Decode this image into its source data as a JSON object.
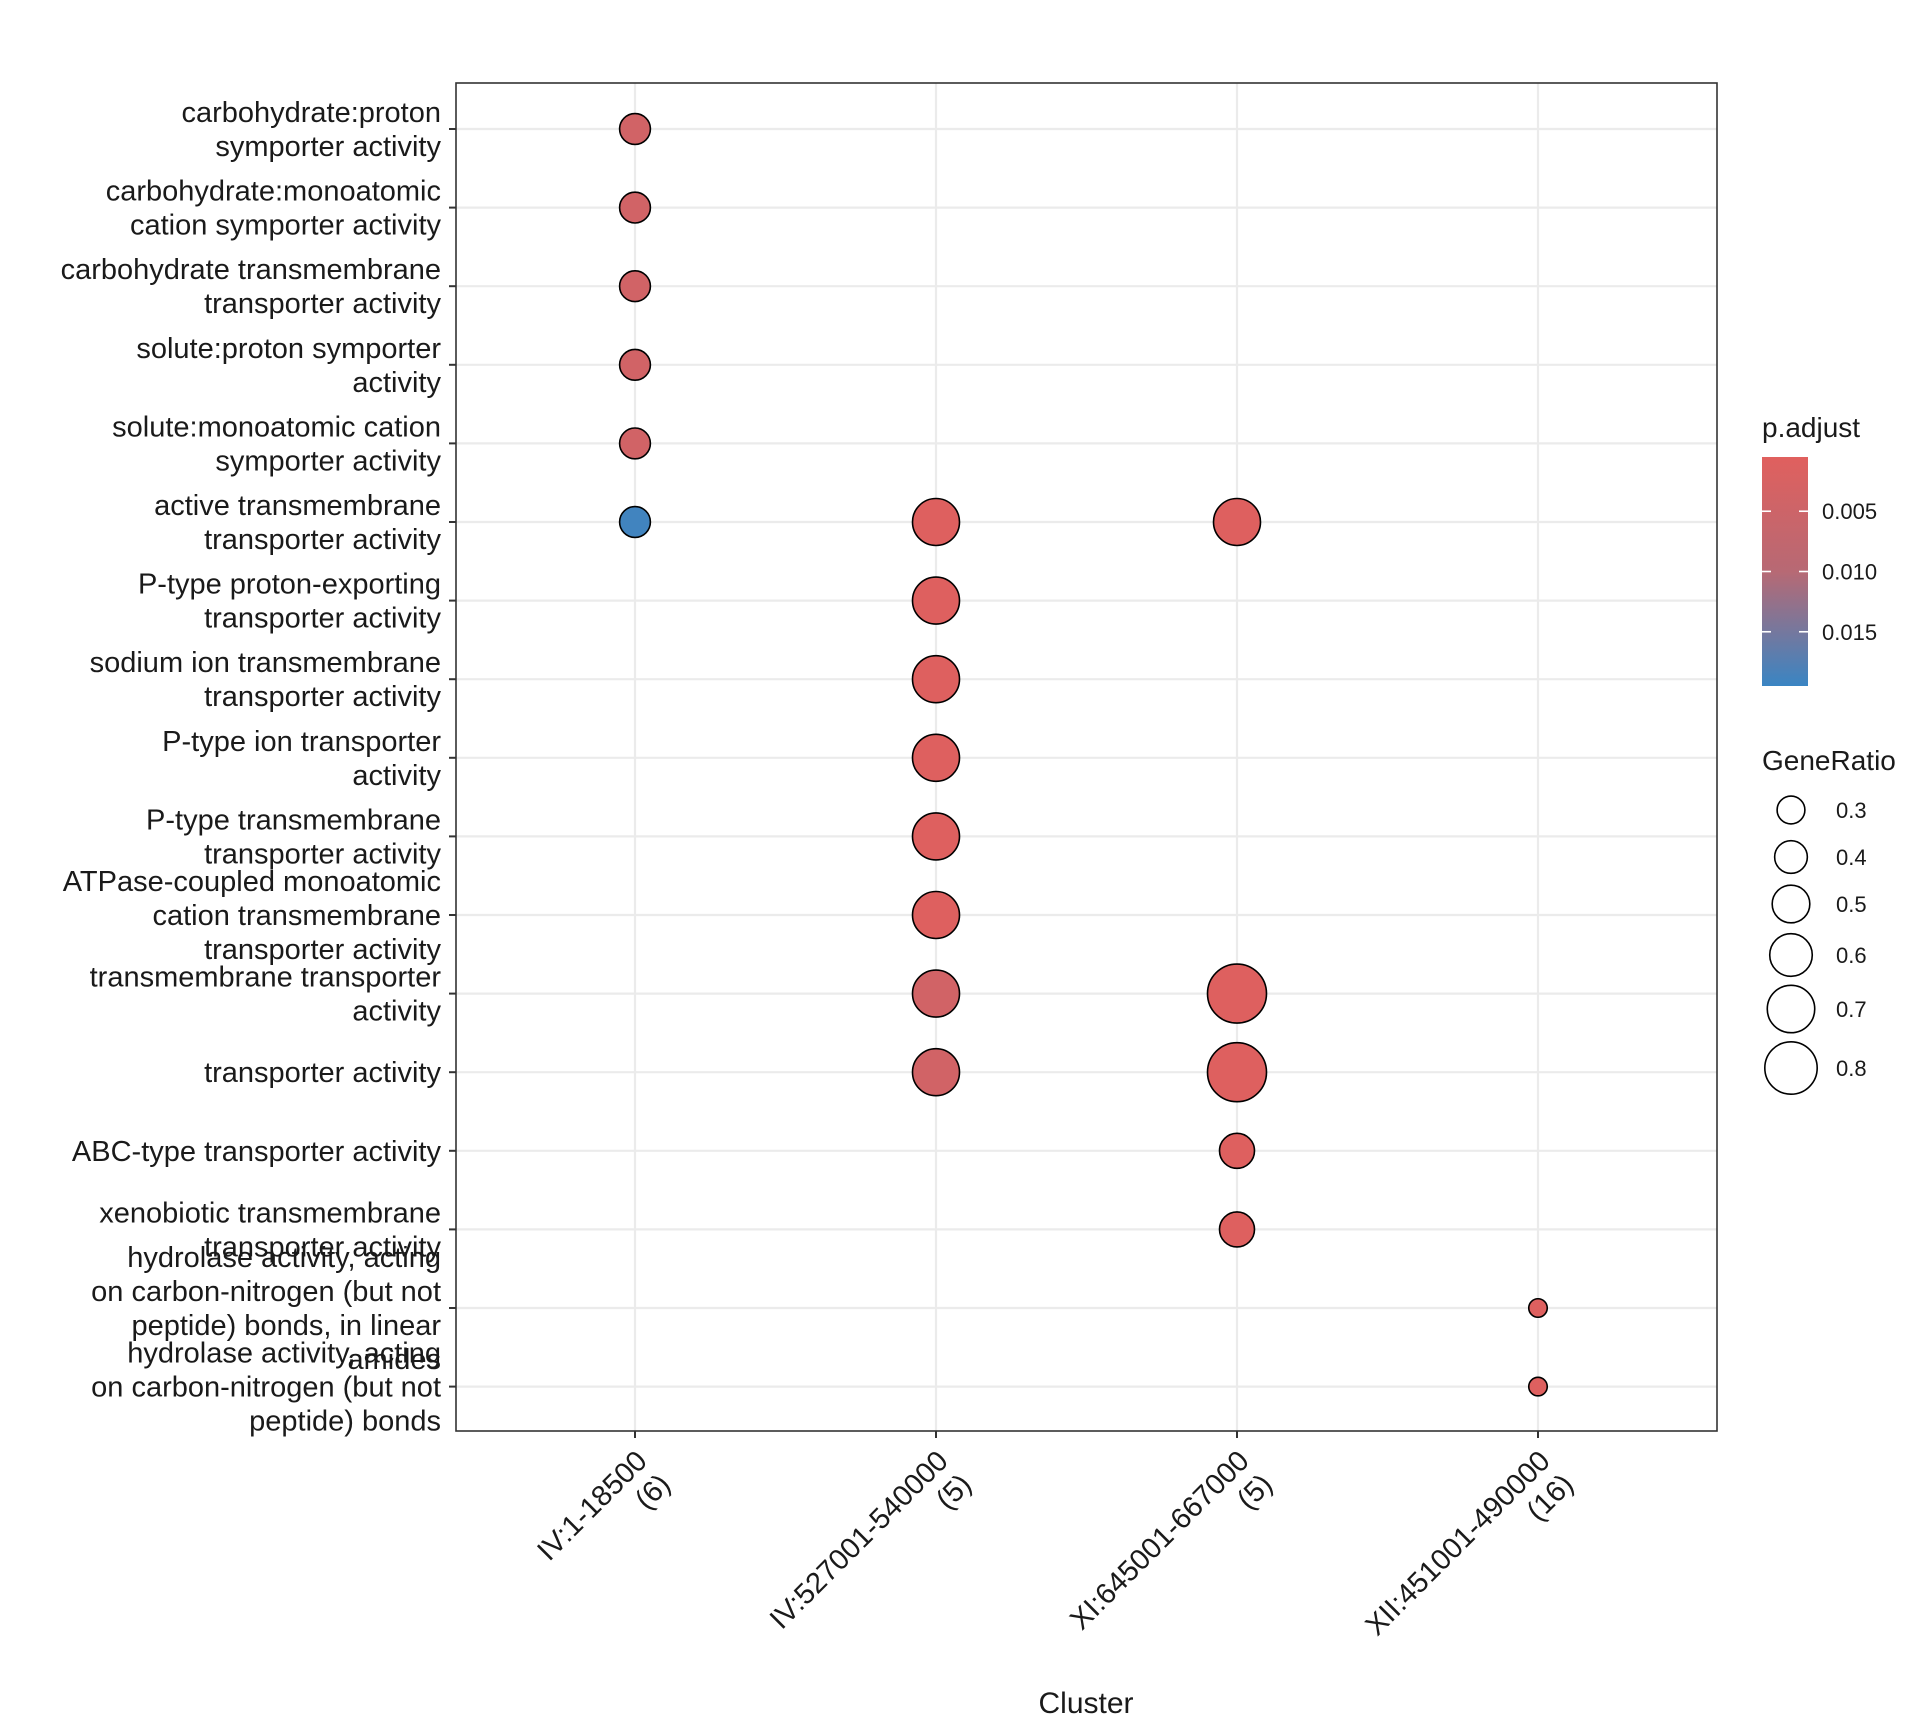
{
  "chart_data": {
    "type": "scatter",
    "xlabel": "Cluster",
    "categories_x": [
      [
        "IV:1-18500",
        "(6)"
      ],
      [
        "IV:527001-540000",
        "(5)"
      ],
      [
        "XI:645001-667000",
        "(5)"
      ],
      [
        "XII:451001-490000",
        "(16)"
      ]
    ],
    "categories_y": [
      [
        "carbohydrate:proton",
        "symporter activity"
      ],
      [
        "carbohydrate:monoatomic",
        "cation symporter activity"
      ],
      [
        "carbohydrate transmembrane",
        "transporter activity"
      ],
      [
        "solute:proton symporter",
        "activity"
      ],
      [
        "solute:monoatomic cation",
        "symporter activity"
      ],
      [
        "active transmembrane",
        "transporter activity"
      ],
      [
        "P-type proton-exporting",
        "transporter activity"
      ],
      [
        "sodium ion transmembrane",
        "transporter activity"
      ],
      [
        "P-type ion transporter",
        "activity"
      ],
      [
        "P-type transmembrane",
        "transporter activity"
      ],
      [
        "ATPase-coupled monoatomic",
        "cation transmembrane",
        "transporter activity"
      ],
      [
        "transmembrane transporter",
        "activity"
      ],
      [
        "transporter activity"
      ],
      [
        "ABC-type transporter activity"
      ],
      [
        "xenobiotic transmembrane",
        "transporter activity"
      ],
      [
        "hydrolase activity, acting",
        "on carbon-nitrogen (but not",
        "peptide) bonds, in linear",
        "amides"
      ],
      [
        "hydrolase activity, acting",
        "on carbon-nitrogen (but not",
        "peptide) bonds"
      ]
    ],
    "points": [
      {
        "x": 0,
        "y": 0,
        "gene_ratio": 0.33,
        "p_adjust": 0.004
      },
      {
        "x": 0,
        "y": 1,
        "gene_ratio": 0.33,
        "p_adjust": 0.004
      },
      {
        "x": 0,
        "y": 2,
        "gene_ratio": 0.33,
        "p_adjust": 0.004
      },
      {
        "x": 0,
        "y": 3,
        "gene_ratio": 0.33,
        "p_adjust": 0.004
      },
      {
        "x": 0,
        "y": 4,
        "gene_ratio": 0.33,
        "p_adjust": 0.004
      },
      {
        "x": 0,
        "y": 5,
        "gene_ratio": 0.33,
        "p_adjust": 0.019
      },
      {
        "x": 1,
        "y": 5,
        "gene_ratio": 0.6,
        "p_adjust": 0.001
      },
      {
        "x": 1,
        "y": 6,
        "gene_ratio": 0.6,
        "p_adjust": 0.001
      },
      {
        "x": 1,
        "y": 7,
        "gene_ratio": 0.6,
        "p_adjust": 0.001
      },
      {
        "x": 1,
        "y": 8,
        "gene_ratio": 0.6,
        "p_adjust": 0.001
      },
      {
        "x": 1,
        "y": 9,
        "gene_ratio": 0.6,
        "p_adjust": 0.001
      },
      {
        "x": 1,
        "y": 10,
        "gene_ratio": 0.6,
        "p_adjust": 0.001
      },
      {
        "x": 1,
        "y": 11,
        "gene_ratio": 0.6,
        "p_adjust": 0.004
      },
      {
        "x": 1,
        "y": 12,
        "gene_ratio": 0.6,
        "p_adjust": 0.004
      },
      {
        "x": 2,
        "y": 5,
        "gene_ratio": 0.6,
        "p_adjust": 0.001
      },
      {
        "x": 2,
        "y": 11,
        "gene_ratio": 0.8,
        "p_adjust": 0.001
      },
      {
        "x": 2,
        "y": 12,
        "gene_ratio": 0.8,
        "p_adjust": 0.001
      },
      {
        "x": 2,
        "y": 13,
        "gene_ratio": 0.4,
        "p_adjust": 0.001
      },
      {
        "x": 2,
        "y": 14,
        "gene_ratio": 0.4,
        "p_adjust": 0.001
      },
      {
        "x": 3,
        "y": 15,
        "gene_ratio": 0.125,
        "p_adjust": 0.001
      },
      {
        "x": 3,
        "y": 16,
        "gene_ratio": 0.125,
        "p_adjust": 0.001
      }
    ],
    "color_legend": {
      "title": "p.adjust",
      "ticks": [
        0.005,
        0.01,
        0.015
      ],
      "tick_labels": [
        "0.005",
        "0.010",
        "0.015"
      ],
      "range": [
        0.0005,
        0.0195
      ],
      "low_color": "#E0605E",
      "high_color": "#3A85C3"
    },
    "size_legend": {
      "title": "GeneRatio",
      "values": [
        0.3,
        0.4,
        0.5,
        0.6,
        0.7,
        0.8
      ],
      "labels": [
        "0.3",
        "0.4",
        "0.5",
        "0.6",
        "0.7",
        "0.8"
      ]
    },
    "grid": true
  }
}
